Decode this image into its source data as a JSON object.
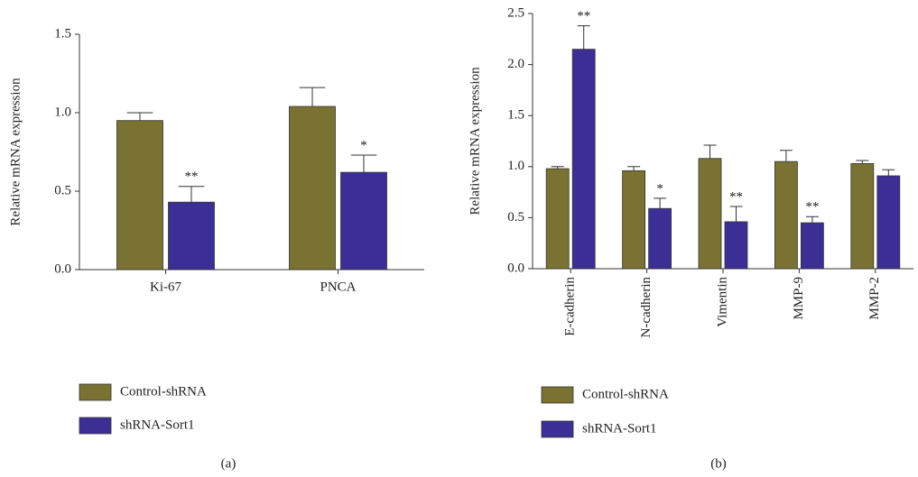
{
  "chart_data": [
    {
      "type": "bar",
      "caption": "(a)",
      "y_label": "Relative mRNA expression",
      "categories": [
        "Ki-67",
        "PNCA"
      ],
      "ylim": [
        0,
        1.5
      ],
      "yticks": [
        {
          "value": 0,
          "label": "0.0"
        },
        0.5,
        {
          "value": 1,
          "label": "1.0"
        },
        1.5
      ],
      "series": [
        {
          "name": "Control-shRNA",
          "color": "#7a7232",
          "values": [
            0.95,
            1.04
          ],
          "errors": [
            0.05,
            0.12
          ],
          "significance": [
            null,
            null
          ]
        },
        {
          "name": "shRNA-Sort1",
          "color": "#3b2f96",
          "values": [
            0.43,
            0.62
          ],
          "errors": [
            0.1,
            0.11
          ],
          "significance": [
            "**",
            "*"
          ]
        }
      ]
    },
    {
      "type": "bar",
      "caption": "(b)",
      "y_label": "Relative mRNA expression",
      "categories": [
        "E-cadherin",
        "N-cadherin",
        "Vimentin",
        "MMP-9",
        "MMP-2"
      ],
      "ylim": [
        0,
        2.5
      ],
      "yticks": [
        {
          "value": 0,
          "label": "0.0"
        },
        0.5,
        {
          "value": 1,
          "label": "1.0"
        },
        1.5,
        {
          "value": 2,
          "label": "2.0"
        },
        2.5
      ],
      "series": [
        {
          "name": "Control-shRNA",
          "color": "#7a7232",
          "values": [
            0.98,
            0.96,
            1.08,
            1.05,
            1.03
          ],
          "errors": [
            0.02,
            0.04,
            0.13,
            0.11,
            0.03
          ],
          "significance": [
            null,
            null,
            null,
            null,
            null
          ]
        },
        {
          "name": "shRNA-Sort1",
          "color": "#3b2f96",
          "values": [
            2.15,
            0.59,
            0.46,
            0.45,
            0.91
          ],
          "errors": [
            0.23,
            0.1,
            0.15,
            0.06,
            0.06
          ],
          "significance": [
            "**",
            "*",
            "**",
            "**",
            null
          ]
        }
      ]
    }
  ]
}
